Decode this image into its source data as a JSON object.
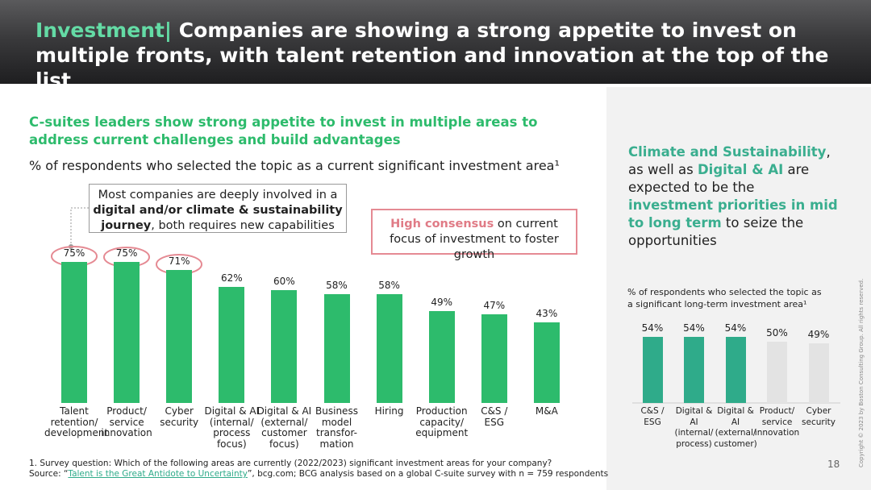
{
  "header": {
    "title_highlight": "Investment|",
    "title_rest": "Companies are showing a strong appetite to invest on multiple fronts, with talent retention and innovation at the top of the list"
  },
  "chart_data": [
    {
      "type": "bar",
      "title": "C-suites leaders show strong appetite to invest in multiple areas to address current challenges and build advantages",
      "subtitle": "% of respondents who selected the topic as a current significant investment area¹",
      "categories": [
        "Talent\nretention/\ndevelopment",
        "Product/\nservice\ninnovation",
        "Cyber\nsecurity",
        "Digital & AI\n(internal/\nprocess\nfocus)",
        "Digital & AI\n(external/\ncustomer\nfocus)",
        "Business\nmodel\ntransfor-\nmation",
        "Hiring",
        "Production\ncapacity/\nequipment",
        "C&S /\nESG",
        "M&A"
      ],
      "values": [
        75,
        75,
        71,
        62,
        60,
        58,
        58,
        49,
        47,
        43
      ],
      "value_labels": [
        "75%",
        "75%",
        "71%",
        "62%",
        "60%",
        "58%",
        "58%",
        "49%",
        "47%",
        "43%"
      ],
      "color": "#2dbb6c"
    },
    {
      "type": "bar",
      "subtitle": "% of respondents who selected the topic as a significant long-term investment area¹",
      "categories": [
        "C&S /\nESG",
        "Digital &\nAI\n(internal/\nprocess)",
        "Digital &\nAI\n(external/\ncustomer)",
        "Product/\nservice\ninnovation",
        "Cyber\nsecurity"
      ],
      "values": [
        54,
        54,
        54,
        50,
        49
      ],
      "value_labels": [
        "54%",
        "54%",
        "54%",
        "50%",
        "49%"
      ],
      "colors": [
        "#2fab8a",
        "#2fab8a",
        "#2fab8a",
        "#e3e3e3",
        "#e3e3e3"
      ]
    }
  ],
  "callouts": {
    "left": [
      "Most companies are deeply involved in a ",
      "digital and/or climate & sustainability journey",
      ", both requires new capabilities"
    ],
    "right": [
      "High consensus",
      " on current focus of investment to foster growth"
    ]
  },
  "panel_text": [
    "Climate and Sustainability",
    ",\nas well as ",
    "Digital & AI",
    " are expected to be the ",
    "investment priorities in mid to long term",
    " to seize the opportunities"
  ],
  "footnotes": {
    "note": "1. Survey question: Which of the following areas are currently (2022/2023) significant investment areas for your company?",
    "source": [
      "Source: “",
      "Talent is the Great Antidote to Uncertainty",
      "”, bcg.com; BCG analysis based on a global C-suite survey with n = 759 respondents"
    ]
  },
  "page_number": "18",
  "copyright": "Copyright © 2023 by Boston Consulting Group. All rights reserved."
}
